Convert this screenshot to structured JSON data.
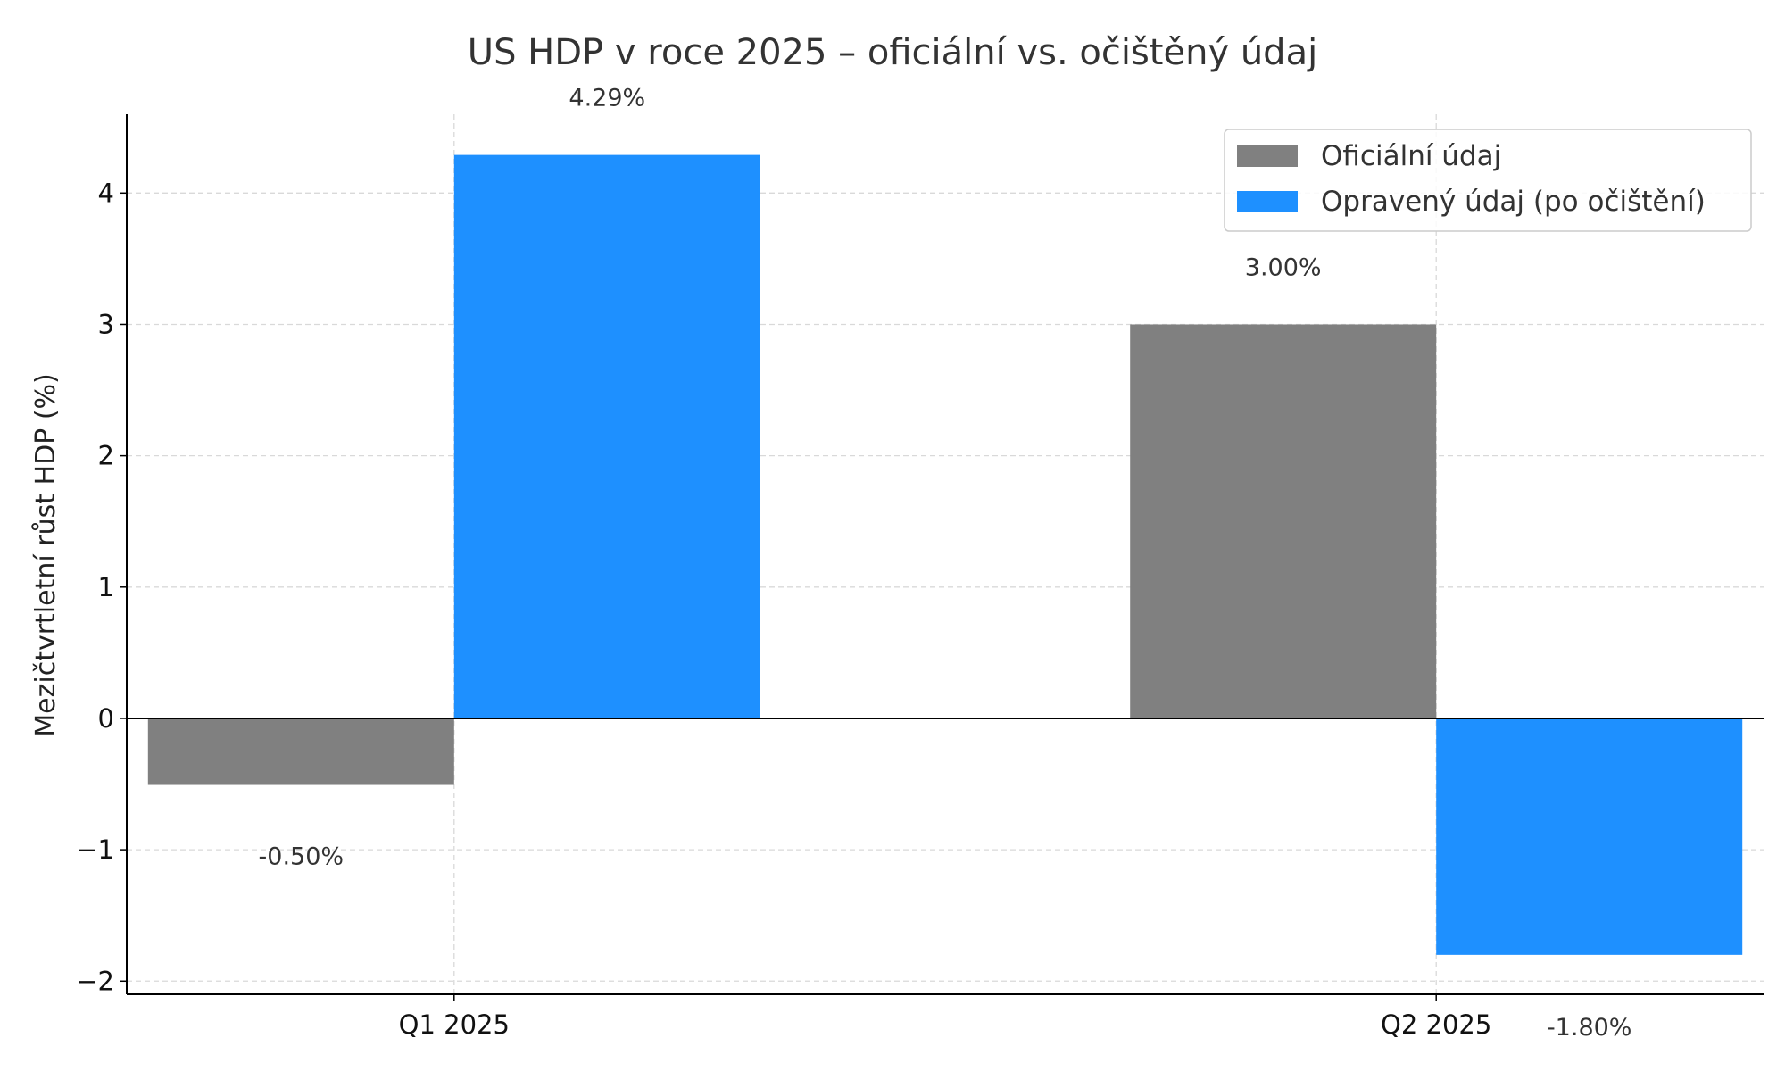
{
  "chart_data": {
    "type": "bar",
    "title": "US HDP v roce 2025 – oficiální vs. očištěný údaj",
    "xlabel": "",
    "ylabel": "Mezičtvrtletní růst HDP (%)",
    "categories": [
      "Q1 2025",
      "Q2 2025"
    ],
    "series": [
      {
        "name": "Oficiální údaj",
        "values": [
          -0.5,
          3.0
        ],
        "labels": [
          "-0.50%",
          "3.00%"
        ],
        "color": "#808080"
      },
      {
        "name": "Opravený údaj (po očištění)",
        "values": [
          4.29,
          -1.8
        ],
        "labels": [
          "4.29%",
          "-1.80%"
        ],
        "color": "#1e90ff"
      }
    ],
    "ylim": [
      -2.1,
      4.6
    ],
    "yticks": [
      -2,
      -1,
      0,
      1,
      2,
      3,
      4
    ],
    "ytick_labels": [
      "−2",
      "−1",
      "0",
      "1",
      "2",
      "3",
      "4"
    ],
    "grid": true,
    "legend_position": "top-right"
  }
}
